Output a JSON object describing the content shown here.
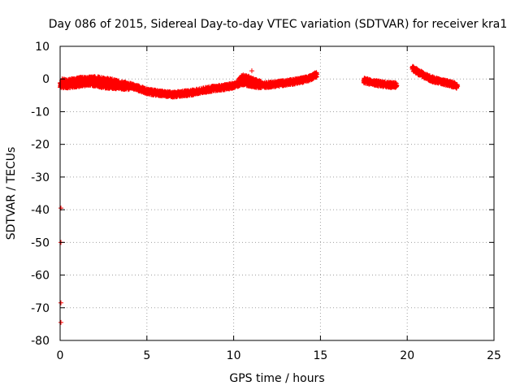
{
  "chart_data": {
    "type": "scatter",
    "title": "Day 086 of 2015, Sidereal Day-to-day VTEC variation (SDTVAR) for receiver kra1",
    "xlabel": "GPS time / hours",
    "ylabel": "SDTVAR / TECUs",
    "xlim": [
      0,
      25
    ],
    "ylim": [
      -80,
      10
    ],
    "x_ticks": [
      0,
      5,
      10,
      15,
      20,
      25
    ],
    "y_ticks": [
      10,
      0,
      -10,
      -20,
      -30,
      -40,
      -50,
      -60,
      -70,
      -80
    ],
    "x_tick_labels": [
      "0",
      "5",
      "10",
      "15",
      "20",
      "25"
    ],
    "y_tick_labels": [
      "10",
      "0",
      "-10",
      "-20",
      "-30",
      "-40",
      "-50",
      "-60",
      "-70",
      "-80"
    ],
    "grid": true,
    "marker": "+",
    "color": "#ff0000",
    "series": [
      {
        "name": "SDTVAR",
        "segments": [
          {
            "x": [
              0.1,
              0.3,
              0.6,
              1.0,
              1.5,
              2.0,
              2.5,
              3.0,
              3.5,
              4.0,
              4.5,
              5.0,
              5.5,
              6.0,
              6.5,
              7.0,
              7.5,
              8.0,
              8.5,
              9.0,
              9.5,
              10.0,
              10.5,
              11.0,
              11.5,
              12.0,
              12.5,
              13.0,
              13.5,
              14.0,
              14.5,
              14.8
            ],
            "y": [
              -0.5,
              -1.0,
              -0.8,
              -0.3,
              -0.2,
              0.0,
              -0.3,
              -0.8,
              -1.5,
              -2.0,
              -2.8,
              -3.8,
              -4.2,
              -4.5,
              -4.8,
              -4.5,
              -4.2,
              -3.8,
              -3.2,
              -2.8,
              -2.5,
              -2.0,
              -1.0,
              -1.5,
              -2.0,
              -1.8,
              -1.5,
              -1.2,
              -0.8,
              -0.3,
              0.5,
              1.5
            ]
          },
          {
            "x": [
              0.0,
              0.3,
              0.8,
              1.2,
              1.8,
              2.5,
              3.2,
              4.0
            ],
            "y": [
              -1.8,
              -2.0,
              -1.8,
              -1.5,
              -1.2,
              -2.0,
              -2.2,
              -2.5
            ]
          },
          {
            "x": [
              10.3,
              10.5,
              10.8,
              11.2,
              11.6
            ],
            "y": [
              -0.5,
              0.5,
              0.2,
              -0.8,
              -1.5
            ]
          },
          {
            "x": [
              17.5,
              17.8,
              18.2,
              18.6,
              19.0,
              19.4
            ],
            "y": [
              -0.5,
              -0.8,
              -1.2,
              -1.6,
              -1.8,
              -2.0
            ]
          },
          {
            "x": [
              20.3,
              20.6,
              21.0,
              21.5,
              22.0,
              22.5,
              22.9
            ],
            "y": [
              3.2,
              2.2,
              1.0,
              -0.2,
              -0.8,
              -1.5,
              -2.2
            ]
          }
        ],
        "outliers": {
          "x": [
            0.0,
            0.0,
            0.0,
            0.0,
            11.0
          ],
          "y": [
            -39.5,
            -50.0,
            -68.5,
            -74.5,
            2.5
          ]
        }
      }
    ]
  }
}
